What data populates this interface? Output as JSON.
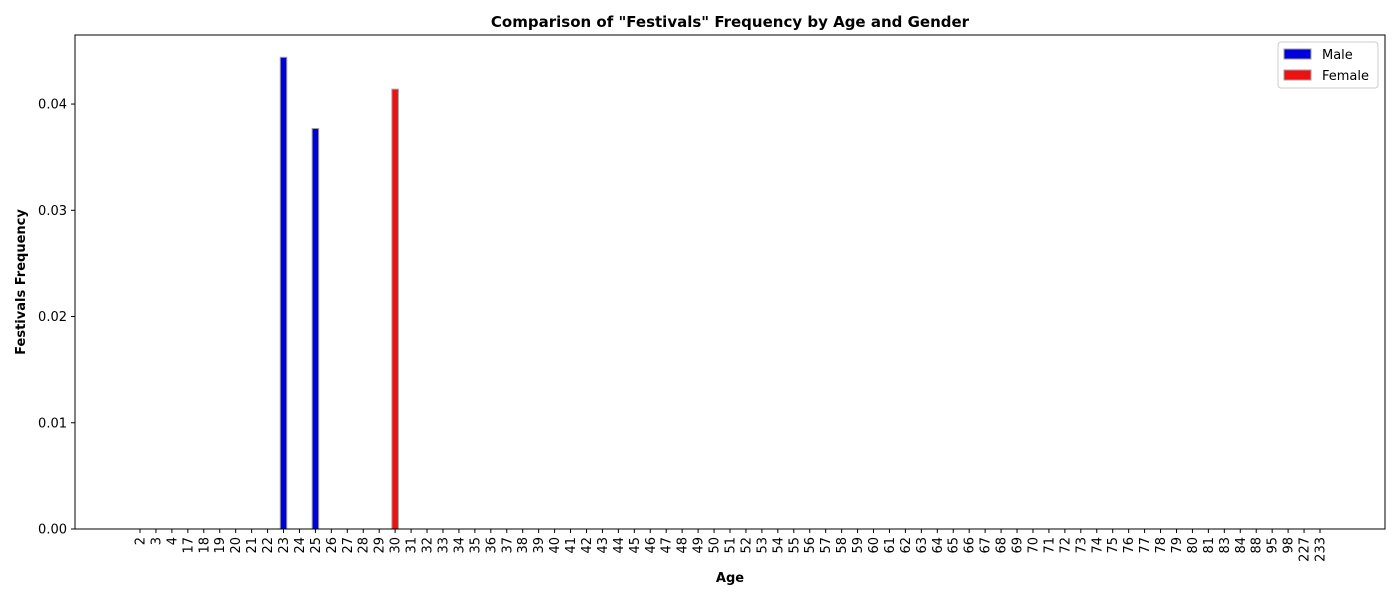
{
  "chart_data": {
    "type": "bar",
    "title": "Comparison of \"Festivals\" Frequency by Age and Gender",
    "xlabel": "Age",
    "ylabel": "Festivals Frequency",
    "ylim": [
      0,
      0.0465
    ],
    "yticks": [
      "0.00",
      "0.01",
      "0.02",
      "0.03",
      "0.04"
    ],
    "ytick_values": [
      0,
      0.01,
      0.02,
      0.03,
      0.04
    ],
    "grid": false,
    "legend_position": "top-right",
    "categories": [
      "2",
      "3",
      "4",
      "17",
      "18",
      "19",
      "20",
      "21",
      "22",
      "23",
      "24",
      "25",
      "26",
      "27",
      "28",
      "29",
      "30",
      "31",
      "32",
      "33",
      "34",
      "35",
      "36",
      "37",
      "38",
      "39",
      "40",
      "41",
      "42",
      "43",
      "44",
      "45",
      "46",
      "47",
      "48",
      "49",
      "50",
      "51",
      "52",
      "53",
      "54",
      "55",
      "56",
      "57",
      "58",
      "59",
      "60",
      "61",
      "62",
      "63",
      "64",
      "65",
      "66",
      "67",
      "68",
      "69",
      "70",
      "71",
      "72",
      "73",
      "74",
      "75",
      "76",
      "77",
      "78",
      "79",
      "80",
      "81",
      "83",
      "84",
      "88",
      "95",
      "98",
      "227",
      "233"
    ],
    "series": [
      {
        "name": "Male",
        "color": "#0000dd",
        "values": [
          0,
          0,
          0,
          0,
          0,
          0,
          0,
          0,
          0,
          0.0444,
          0,
          0.0377,
          0,
          0,
          0,
          0,
          0,
          0,
          0,
          0,
          0,
          0,
          0,
          0,
          0,
          0,
          0,
          0,
          0,
          0,
          0,
          0,
          0,
          0,
          0,
          0,
          0,
          0,
          0,
          0,
          0,
          0,
          0,
          0,
          0,
          0,
          0,
          0,
          0,
          0,
          0,
          0,
          0,
          0,
          0,
          0,
          0,
          0,
          0,
          0,
          0,
          0,
          0,
          0,
          0,
          0,
          0,
          0,
          0,
          0,
          0,
          0,
          0,
          0,
          0
        ]
      },
      {
        "name": "Female",
        "color": "#ee1111",
        "values": [
          0,
          0,
          0,
          0,
          0,
          0,
          0,
          0,
          0,
          0,
          0,
          0,
          0,
          0,
          0,
          0,
          0.0414,
          0,
          0,
          0,
          0,
          0,
          0,
          0,
          0,
          0,
          0,
          0,
          0,
          0,
          0,
          0,
          0,
          0,
          0,
          0,
          0,
          0,
          0,
          0,
          0,
          0,
          0,
          0,
          0,
          0,
          0,
          0,
          0,
          0,
          0,
          0,
          0,
          0,
          0,
          0,
          0,
          0,
          0,
          0,
          0,
          0,
          0,
          0,
          0,
          0,
          0,
          0,
          0,
          0,
          0,
          0,
          0,
          0,
          0
        ]
      }
    ]
  }
}
